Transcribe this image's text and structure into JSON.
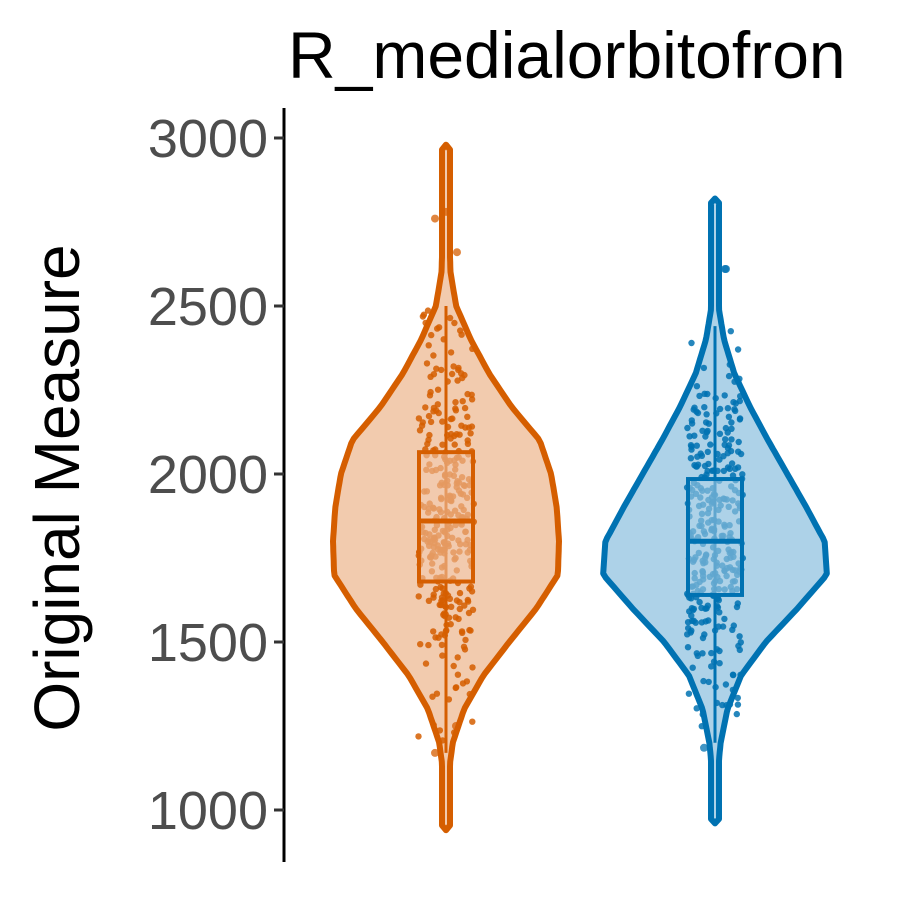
{
  "chart_data": {
    "type": "violin",
    "title": "R_medialorbitofron",
    "ylabel": "Original Measure",
    "xlabel": "",
    "ylim": [
      850,
      3150
    ],
    "yticks": [
      1000,
      1500,
      2000,
      2500,
      3000
    ],
    "grid": false,
    "legend": "none",
    "series": [
      {
        "color_line": "#D55E00",
        "color_fill": "#F2CBAE",
        "min": 940,
        "max": 2980,
        "q1": 1680,
        "median": 1860,
        "q3": 2065,
        "whisker_low": 1170,
        "whisker_high": 2500,
        "density": [
          [
            940,
            0.0
          ],
          [
            1100,
            0.02
          ],
          [
            1200,
            0.06
          ],
          [
            1300,
            0.16
          ],
          [
            1400,
            0.33
          ],
          [
            1500,
            0.56
          ],
          [
            1600,
            0.8
          ],
          [
            1700,
            0.99
          ],
          [
            1800,
            1.0
          ],
          [
            1900,
            0.98
          ],
          [
            2000,
            0.93
          ],
          [
            2100,
            0.83
          ],
          [
            2200,
            0.58
          ],
          [
            2300,
            0.38
          ],
          [
            2400,
            0.22
          ],
          [
            2500,
            0.09
          ],
          [
            2600,
            0.04
          ],
          [
            2700,
            0.03
          ],
          [
            2800,
            0.02
          ],
          [
            2980,
            0.0
          ]
        ],
        "outliers": [
          1170,
          1250,
          2660,
          2760,
          2780
        ]
      },
      {
        "color_line": "#0072B2",
        "color_fill": "#ADD2E8",
        "min": 960,
        "max": 2820,
        "q1": 1640,
        "median": 1800,
        "q3": 1985,
        "whisker_low": 1200,
        "whisker_high": 2440,
        "density": [
          [
            960,
            0.0
          ],
          [
            1100,
            0.02
          ],
          [
            1200,
            0.05
          ],
          [
            1300,
            0.11
          ],
          [
            1400,
            0.23
          ],
          [
            1500,
            0.45
          ],
          [
            1600,
            0.73
          ],
          [
            1700,
            0.99
          ],
          [
            1800,
            0.97
          ],
          [
            1900,
            0.81
          ],
          [
            2000,
            0.64
          ],
          [
            2100,
            0.47
          ],
          [
            2200,
            0.31
          ],
          [
            2300,
            0.17
          ],
          [
            2400,
            0.08
          ],
          [
            2500,
            0.03
          ],
          [
            2600,
            0.02
          ],
          [
            2700,
            0.02
          ],
          [
            2820,
            0.0
          ]
        ],
        "outliers": [
          1185,
          2610,
          2610
        ]
      }
    ]
  }
}
